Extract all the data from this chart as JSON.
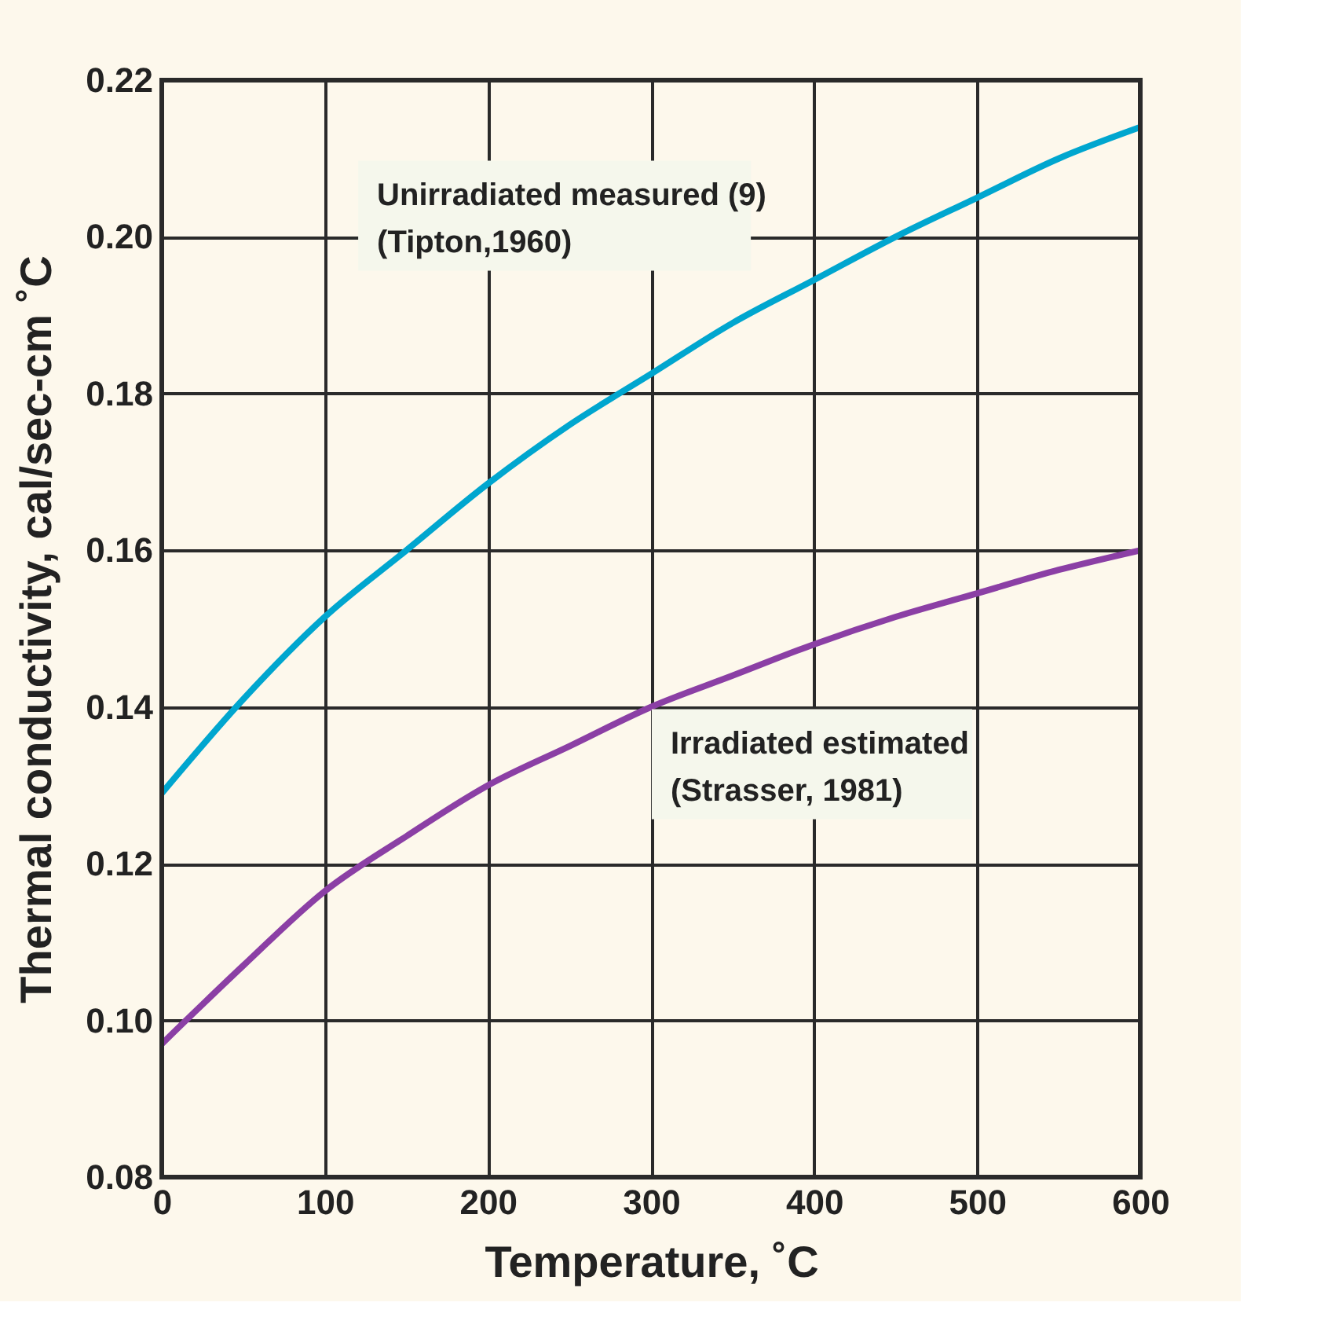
{
  "chart_data": {
    "type": "line",
    "xlabel": "Temperature, ˚C",
    "ylabel": "Thermal conductivity, cal/sec-cm ˚C",
    "xlim": [
      0,
      600
    ],
    "xticks": [
      0,
      100,
      200,
      300,
      400,
      500,
      600
    ],
    "ylim": [
      0.08,
      0.22
    ],
    "yticks": [
      0.08,
      {
        "value": 0.1,
        "label": "0.10"
      },
      0.12,
      0.14,
      0.16,
      0.18,
      {
        "value": 0.2,
        "label": "0.20"
      },
      0.22
    ],
    "grid": true,
    "marker": "none",
    "line_style": "solid",
    "x": [
      0,
      50,
      100,
      150,
      200,
      250,
      300,
      350,
      400,
      450,
      500,
      550,
      600
    ],
    "series": [
      {
        "name": "Unirradiated measured (9)\n(Tipton,1960)",
        "color": "#00a6cf",
        "values": [
          0.129,
          0.141,
          0.1515,
          0.16,
          0.1685,
          0.176,
          0.1825,
          0.189,
          0.1945,
          0.2,
          0.205,
          0.21,
          0.214
        ]
      },
      {
        "name": "Irradiated estimated\n(Strasser, 1981)",
        "color": "#8b3fa5",
        "values": [
          0.097,
          0.107,
          0.1165,
          0.1235,
          0.13,
          0.135,
          0.14,
          0.144,
          0.148,
          0.1515,
          0.1545,
          0.1575,
          0.16
        ]
      }
    ]
  }
}
